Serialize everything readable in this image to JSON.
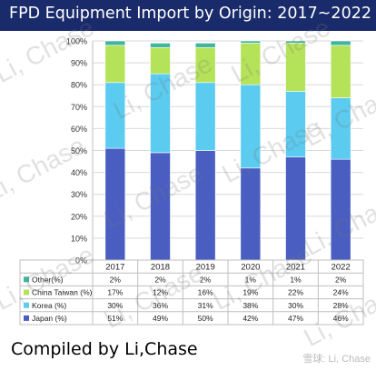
{
  "chart_data": {
    "type": "bar",
    "stacked": true,
    "title": "FPD Equipment Import by Origin: 2017~2022",
    "categories": [
      "2017",
      "2018",
      "2019",
      "2020",
      "2021",
      "2022"
    ],
    "series": [
      {
        "name": "Japan (%)",
        "values": [
          51,
          49,
          50,
          42,
          47,
          46
        ],
        "color": "#4a5ec2",
        "labels": [
          "51%",
          "49%",
          "50%",
          "42%",
          "47%",
          "46%"
        ]
      },
      {
        "name": "Korea (%)",
        "values": [
          30,
          36,
          31,
          38,
          30,
          28
        ],
        "color": "#5ccbf0",
        "labels": [
          "30%",
          "36%",
          "31%",
          "38%",
          "30%",
          "28%"
        ]
      },
      {
        "name": "China Taiwan (%)",
        "values": [
          17,
          12,
          16,
          19,
          22,
          24
        ],
        "color": "#b4e35a",
        "labels": [
          "17%",
          "12%",
          "16%",
          "19%",
          "22%",
          "24%"
        ]
      },
      {
        "name": "Other(%)",
        "values": [
          2,
          2,
          2,
          1,
          1,
          2
        ],
        "color": "#3fb5a0",
        "labels": [
          "2%",
          "2%",
          "2%",
          "1%",
          "1%",
          "2%"
        ]
      }
    ],
    "yticks": [
      "0%",
      "10%",
      "20%",
      "30%",
      "40%",
      "50%",
      "60%",
      "70%",
      "80%",
      "90%",
      "100%"
    ],
    "ylim": [
      0,
      100
    ],
    "grid": true,
    "legend": "data-table"
  },
  "credit": "Compiled by Li,Chase",
  "watermark": {
    "text": "Li, Chase",
    "corner": "雪球: Li, Chase"
  }
}
